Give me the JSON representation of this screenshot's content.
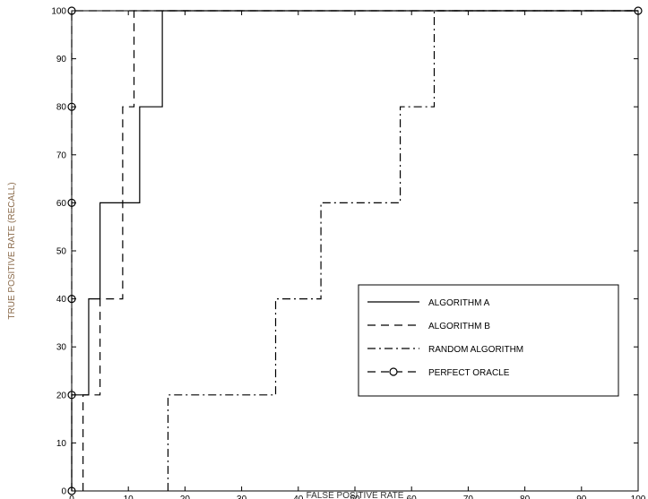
{
  "chart_data": {
    "type": "line",
    "title": "",
    "xlabel": "FALSE POSITIVE RATE",
    "ylabel": "TRUE POSITIVE RATE (RECALL)",
    "xlim": [
      0,
      100
    ],
    "ylim": [
      0,
      100
    ],
    "xticks": [
      0,
      10,
      20,
      30,
      40,
      50,
      60,
      70,
      80,
      90,
      100
    ],
    "yticks": [
      0,
      10,
      20,
      30,
      40,
      50,
      60,
      70,
      80,
      90,
      100
    ],
    "grid": false,
    "legend_position": "lower-right",
    "series": [
      {
        "name": "ALGORITHM A",
        "style": "solid",
        "color": "#000000",
        "x": [
          0,
          0,
          3,
          3,
          5,
          5,
          12,
          12,
          16,
          16,
          100
        ],
        "y": [
          0,
          20,
          20,
          40,
          40,
          60,
          60,
          80,
          80,
          100,
          100
        ]
      },
      {
        "name": "ALGORITHM B",
        "style": "dashed",
        "color": "#000000",
        "x": [
          2,
          2,
          5,
          5,
          9,
          9,
          10,
          10,
          11,
          11,
          100
        ],
        "y": [
          0,
          20,
          20,
          40,
          40,
          80,
          80,
          80,
          80,
          100,
          100
        ]
      },
      {
        "name": "RANDOM ALGORITHM",
        "style": "dashdot",
        "color": "#000000",
        "x": [
          17,
          17,
          36,
          36,
          44,
          44,
          58,
          58,
          64,
          64,
          100
        ],
        "y": [
          0,
          20,
          20,
          40,
          40,
          60,
          60,
          80,
          80,
          100,
          100
        ]
      },
      {
        "name": "PERFECT ORACLE",
        "style": "dashed",
        "marker": "circle",
        "color": "#000000",
        "x": [
          0,
          0,
          0,
          0,
          0,
          0,
          100
        ],
        "y": [
          0,
          20,
          40,
          60,
          80,
          100,
          100
        ]
      }
    ]
  }
}
